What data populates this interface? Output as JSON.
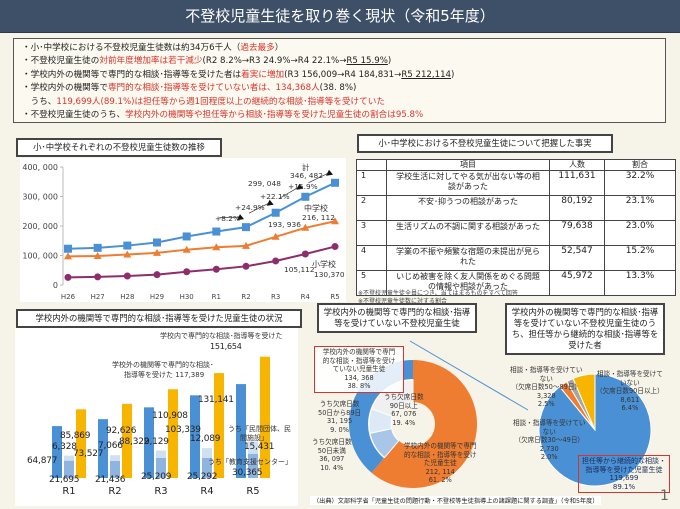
{
  "title": "不登校児童生徒を取り巻く現状（令和5年度）",
  "summary": {
    "l1a": "・小･中学校における不登校児童生徒数は約34万6千人（",
    "l1b": "過去最多",
    "l1c": "）",
    "l2a": "・不登校児童生徒の",
    "l2b": "対前年度増加率は若干減少",
    "l2c": "(R2 8.2%→R3 24.9%→R4 22.1%→",
    "l2d": "R5 15.9%",
    "l2e": ")",
    "l3a": "・学校内外の機関等で専門的な相談･指導等を受けた者は",
    "l3b": "着実に増加",
    "l3c": "(R3 156,009→R4 184,831→",
    "l3d": "R5 212,114",
    "l3e": ")",
    "l4a": "・学校内外の機関等で",
    "l4b": "専門的な相談･指導等を受けていない者は、134,368人",
    "l4c": "(38. 8%)",
    "l5a": "　うち、",
    "l5b": "119,699人(89.1%)は担任等から週1回程度以上の継続的な相談･指導等を受けていた",
    "l6a": "・不登校児童生徒のうち、",
    "l6b": "学校内外の機関等や担任等から相談･指導等を受けた児童生徒の割合は95.8%"
  },
  "colors": {
    "header": "#3e5068",
    "total": "#4a90d4",
    "junior": "#ee7d31",
    "elementary": "#8e2d6c",
    "inner": "#f7b500",
    "outer": "#4a90d4",
    "red": "#d9342b"
  },
  "chart_data": [
    {
      "type": "line",
      "title": "小･中学校それぞれの不登校児童生徒数の推移",
      "categories": [
        "H26",
        "H27",
        "H28",
        "H29",
        "H30",
        "R1",
        "R2",
        "R3",
        "R4",
        "R5"
      ],
      "yticks": [
        "0",
        "100, 000",
        "200, 000",
        "300, 000",
        "400, 000"
      ],
      "ylim": [
        0,
        400000
      ],
      "series": [
        {
          "name": "計",
          "marker": "square",
          "values": [
            122897,
            125991,
            133683,
            144031,
            164528,
            181272,
            196127,
            244940,
            299048,
            346482
          ]
        },
        {
          "name": "中学校",
          "marker": "triangle",
          "values": [
            97033,
            98408,
            103235,
            108999,
            119687,
            127922,
            132777,
            163442,
            193936,
            216112
          ]
        },
        {
          "name": "小学校",
          "marker": "circle",
          "values": [
            25864,
            27583,
            30448,
            35032,
            44841,
            53350,
            63350,
            81498,
            105112,
            130370
          ]
        }
      ],
      "annotations": {
        "total_name": "計",
        "total_r5": "346, 482",
        "total_r4": "299, 048",
        "junior_name": "中学校",
        "junior_r5": "216, 112",
        "junior_r4": "193, 936",
        "elem_name": "小学校",
        "elem_r5": "130,370",
        "elem_r4": "105,112",
        "g1": "+8.2%",
        "g2": "+24.9%",
        "g3": "+22.1%",
        "g4": "+15.9%"
      }
    },
    {
      "type": "bar",
      "title": "学校内外の機関等で専門的な相談･指導等を受けた児童生徒の状況",
      "categories": [
        "R1",
        "R2",
        "R3",
        "R4",
        "R5"
      ],
      "series": [
        {
          "name": "学校外の機関等で専門的な相談･指導等を受けた",
          "values": [
            64877,
            73527,
            88322,
            103339,
            117389
          ]
        },
        {
          "name": "うち「教育支援センター」",
          "values": [
            21695,
            21436,
            25209,
            25292,
            30365
          ]
        },
        {
          "name": "うち「民間団体、民間施設」",
          "values": [
            6328,
            7066,
            9129,
            12089,
            15431
          ]
        },
        {
          "name": "学校内で専門的な相談･指導等を受けた",
          "values": [
            85869,
            92626,
            110908,
            131141,
            151654
          ]
        }
      ],
      "labels": {
        "inner": "学校内で専門的な相談･指導等を受けた",
        "inner_val": "151,654",
        "outer1": "学校外の機関等で専門的な相談･",
        "outer2": "指導等を受けた 117,389",
        "private1": "うち「民間団体、民",
        "private2": "間施設」",
        "private_val": "15,431",
        "center": "うち「教育支援センター」",
        "center_val": "30,365"
      },
      "data_labels": [
        [
          "64,877",
          "6,328",
          "21,695",
          "85,869"
        ],
        [
          "73,527",
          "7,066",
          "21,436",
          "92,626"
        ],
        [
          "88,322",
          "9,129",
          "25,209",
          "110,908"
        ],
        [
          "103,339",
          "12,089",
          "25,292",
          "131,141"
        ]
      ]
    },
    {
      "type": "table",
      "title": "小･中学校における不登校児童生徒について把握した事実",
      "headers": [
        "",
        "項目",
        "人数",
        "割合"
      ],
      "rows": [
        [
          "1",
          "学校生活に対してやる気が出ない等の相談があった",
          "111,631",
          "32.2%"
        ],
        [
          "2",
          "不安･抑うつの相談があった",
          "80,192",
          "23.1%"
        ],
        [
          "3",
          "生活リズムの不調に関する相談があった",
          "79,638",
          "23.0%"
        ],
        [
          "4",
          "学業の不振や頻繁な宿題の未提出が見られた",
          "52,547",
          "15.2%"
        ],
        [
          "5",
          "いじめ被害を除く友人関係をめぐる問題の情報や相談があった",
          "45,972",
          "13.3%"
        ]
      ],
      "notes": [
        "※不登校児童生徒全員につき、当てはまるものをすべて回答",
        "※不登校児童生徒数に対する割合"
      ]
    },
    {
      "type": "pie",
      "title": "学校内外の機関等で専門的な相談･指導等を受けていない不登校児童生徒",
      "slices": [
        {
          "label": "学校内外の機関等で専門的な相談・指導等を受けた児童生徒",
          "value": 212114,
          "percent": 61.2
        },
        {
          "label": "学校内外の機関等で専門的な相談・指導等を受けていない児童生徒",
          "value": 134368,
          "percent": 38.8,
          "breakdown": [
            {
              "label": "うち欠席日数90日以上",
              "value": 67076,
              "percent": 19.4
            },
            {
              "label": "うち欠席日数50日から89日",
              "value": 31195,
              "percent": 9.0
            },
            {
              "label": "うち欠席日数50日未満",
              "value": 36097,
              "percent": 10.4
            }
          ]
        }
      ],
      "text": {
        "not1": "学校内外の機関等で専門",
        "not2": "的な相談・指導等を受け",
        "not3": "ていない児童生徒",
        "not_v": "134, 368",
        "not_p": "38. 8%",
        "a1": "うち欠席日数",
        "a2": "90日以上",
        "a_v": "67, 076",
        "a_p": "19. 4%",
        "b1": "うち欠席日数",
        "b2": "50日から89日",
        "b_v": "31, 195",
        "b_p": "9. 0%",
        "c1": "うち欠席日数",
        "c2": "50日未満",
        "c_v": "36, 097",
        "c_p": "10. 4%",
        "r1": "学校内外の機関等で専門",
        "r2": "的な相談・指導等を受け",
        "r3": "た児童生徒",
        "r_v": "212, 114",
        "r_p": "61. 2%"
      }
    },
    {
      "type": "pie",
      "title": "学校内外の機関等で専門的な相談･指導等を受けていない不登校児童生徒のうち、担任等から継続的な相談･指導等を受けた者",
      "slices": [
        {
          "label": "担任等から継続的な相談・指導等を受けた児童生徒",
          "value": 119699,
          "percent": 89.1
        },
        {
          "label": "相談・指導等を受けていない（欠席日数90日以上）",
          "value": 8611,
          "percent": 6.4
        },
        {
          "label": "相談・指導等を受けていない（欠席日数30～49日）",
          "value": 2730,
          "percent": 2.0
        },
        {
          "label": "相談・指導等を受けていない（欠席日数50～89日）",
          "value": 3328,
          "percent": 2.5
        }
      ],
      "text": {
        "y1": "相談・指導等を受けて",
        "y2": "いない",
        "y3": "（欠席日数90日以上）",
        "y_v": "8,611",
        "y_p": "6.4%",
        "o1": "相談・指導等を受けてい",
        "o2": "ない",
        "o3": "（欠席日数50～89日）",
        "o_v": "3,328",
        "o_p": "2.5%",
        "g1": "相談・指導等を受けてい",
        "g2": "ない",
        "g3": "（欠席日数30～49日）",
        "g_v": "2,730",
        "g_p": "2.0%",
        "b1": "担任等から継続的な相談・",
        "b2": "指導等を受けた児童生徒",
        "b_v": "119,699",
        "b_p": "89.1%"
      }
    }
  ],
  "footer": "（出典）文部科学省「児童生徒の問題行動・不登校等生徒指導上の諸課題に関する調査」（令和5年度）",
  "page_number": "1"
}
